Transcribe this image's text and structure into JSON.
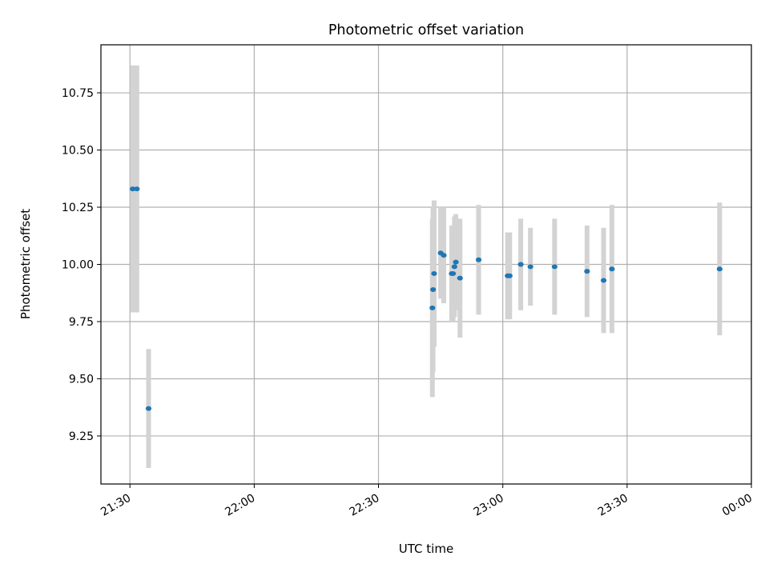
{
  "chart_data": {
    "type": "scatter",
    "title": "Photometric offset variation",
    "xlabel": "UTC time",
    "ylabel": "Photometric offset",
    "x_is_time": true,
    "xlim": [
      "21:23",
      "00:00"
    ],
    "ylim": [
      9.04,
      10.96
    ],
    "x_ticks": [
      "21:30",
      "22:00",
      "22:30",
      "23:00",
      "23:30",
      "00:00"
    ],
    "y_ticks": [
      "9.25",
      "9.50",
      "9.75",
      "10.00",
      "10.25",
      "10.50",
      "10.75"
    ],
    "grid": true,
    "colors": {
      "point": "#1f77b4",
      "errorbar": "#d3d3d3",
      "grid": "#b0b0b0",
      "axes": "#000000"
    },
    "points": [
      {
        "x": "21:30:40",
        "y": 10.33,
        "err": 0.54
      },
      {
        "x": "21:31:40",
        "y": 10.33,
        "err": 0.54
      },
      {
        "x": "21:34:30",
        "y": 9.37,
        "err": 0.26
      },
      {
        "x": "22:43:00",
        "y": 9.81,
        "err": 0.39
      },
      {
        "x": "22:43:10",
        "y": 9.89,
        "err": 0.36
      },
      {
        "x": "22:43:25",
        "y": 9.96,
        "err": 0.32
      },
      {
        "x": "22:45:00",
        "y": 10.05,
        "err": 0.2
      },
      {
        "x": "22:45:45",
        "y": 10.04,
        "err": 0.21
      },
      {
        "x": "22:47:40",
        "y": 9.96,
        "err": 0.21
      },
      {
        "x": "22:48:00",
        "y": 9.96,
        "err": 0.21
      },
      {
        "x": "22:48:20",
        "y": 9.99,
        "err": 0.22
      },
      {
        "x": "22:48:40",
        "y": 10.01,
        "err": 0.21
      },
      {
        "x": "22:49:40",
        "y": 9.94,
        "err": 0.26
      },
      {
        "x": "22:54:10",
        "y": 10.02,
        "err": 0.24
      },
      {
        "x": "23:01:10",
        "y": 9.95,
        "err": 0.19
      },
      {
        "x": "23:01:40",
        "y": 9.95,
        "err": 0.19
      },
      {
        "x": "23:04:20",
        "y": 10.0,
        "err": 0.2
      },
      {
        "x": "23:06:40",
        "y": 9.99,
        "err": 0.17
      },
      {
        "x": "23:12:30",
        "y": 9.99,
        "err": 0.21
      },
      {
        "x": "23:20:20",
        "y": 9.97,
        "err": 0.2
      },
      {
        "x": "23:24:20",
        "y": 9.93,
        "err": 0.23
      },
      {
        "x": "23:26:20",
        "y": 9.98,
        "err": 0.28
      },
      {
        "x": "23:52:20",
        "y": 9.98,
        "err": 0.29
      }
    ]
  }
}
